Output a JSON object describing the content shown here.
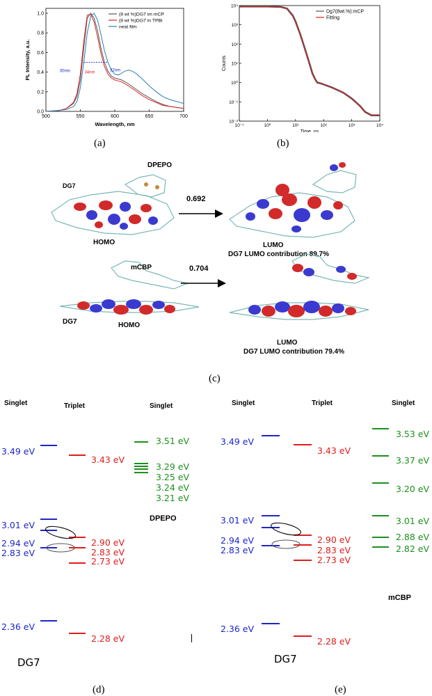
{
  "panel_a": {
    "caption": "(a)",
    "chart_data": {
      "type": "line",
      "xlabel": "Wavelength, nm",
      "ylabel": "PL Intensity, a.u.",
      "xlim": [
        500,
        700
      ],
      "ylim": [
        0,
        1.05
      ],
      "xticks": [
        "500",
        "550",
        "600",
        "650",
        "700"
      ],
      "yticks": [
        "0.0",
        "0.2",
        "0.4",
        "0.6",
        "0.8",
        "1.0"
      ],
      "legend_position": "top-right",
      "series": [
        {
          "name": "(8 wt %)DG7 im mCP",
          "color": "#555555",
          "x": [
            500,
            520,
            530,
            540,
            545,
            550,
            555,
            560,
            565,
            570,
            575,
            580,
            585,
            590,
            595,
            600,
            605,
            610,
            620,
            630,
            640,
            650,
            660,
            670,
            680,
            690,
            700
          ],
          "y": [
            0.0,
            0.01,
            0.03,
            0.08,
            0.15,
            0.32,
            0.65,
            0.95,
            1.0,
            0.95,
            0.82,
            0.64,
            0.5,
            0.41,
            0.36,
            0.34,
            0.33,
            0.32,
            0.28,
            0.23,
            0.18,
            0.14,
            0.1,
            0.07,
            0.05,
            0.04,
            0.03
          ]
        },
        {
          "name": "(8 wt %)DG7 in TPBi",
          "color": "#e02020",
          "x": [
            500,
            520,
            530,
            540,
            545,
            550,
            555,
            560,
            565,
            570,
            575,
            580,
            585,
            590,
            595,
            600,
            605,
            610,
            620,
            630,
            640,
            650,
            660,
            670,
            680,
            690,
            700
          ],
          "y": [
            0.0,
            0.01,
            0.03,
            0.09,
            0.18,
            0.38,
            0.72,
            0.98,
            0.99,
            0.91,
            0.76,
            0.59,
            0.46,
            0.38,
            0.34,
            0.32,
            0.31,
            0.3,
            0.26,
            0.21,
            0.16,
            0.12,
            0.09,
            0.06,
            0.05,
            0.04,
            0.03
          ]
        },
        {
          "name": "neat film",
          "color": "#2a7db0",
          "x": [
            500,
            520,
            530,
            540,
            545,
            550,
            555,
            560,
            565,
            570,
            575,
            580,
            585,
            590,
            595,
            600,
            605,
            610,
            615,
            620,
            625,
            630,
            640,
            650,
            660,
            670,
            680,
            690,
            700
          ],
          "y": [
            0.0,
            0.01,
            0.02,
            0.05,
            0.1,
            0.24,
            0.5,
            0.8,
            0.97,
            1.0,
            0.93,
            0.78,
            0.62,
            0.5,
            0.42,
            0.38,
            0.37,
            0.39,
            0.41,
            0.42,
            0.41,
            0.39,
            0.33,
            0.26,
            0.2,
            0.15,
            0.12,
            0.1,
            0.08
          ]
        }
      ],
      "annotations": [
        "30nm",
        "34nm",
        "32nm"
      ]
    }
  },
  "panel_b": {
    "caption": "(b)",
    "chart_data": {
      "type": "line",
      "xlabel": "Time, ns",
      "ylabel": "Counts",
      "xscale": "log",
      "yscale": "log",
      "xlim": [
        0.1,
        10000
      ],
      "ylim": [
        0.01,
        10000
      ],
      "xticks": [
        "10⁻¹",
        "10⁰",
        "10¹",
        "10²",
        "10³",
        "10⁴"
      ],
      "yticks": [
        "10⁻²",
        "10⁻¹",
        "10⁰",
        "10¹",
        "10²",
        "10³",
        "10⁴"
      ],
      "legend_position": "top-right",
      "series": [
        {
          "name": "Dg7(8wt.%):mCP",
          "color": "#555555",
          "x": [
            0.1,
            1,
            3,
            5,
            8,
            10,
            15,
            20,
            30,
            40,
            50,
            60,
            80,
            100,
            200,
            500,
            1000,
            2000,
            3000,
            5000,
            10000
          ],
          "y": [
            9000,
            9000,
            8500,
            7000,
            3000,
            1500,
            300,
            80,
            12,
            3,
            1.5,
            1.0,
            0.9,
            0.8,
            0.55,
            0.3,
            0.15,
            0.06,
            0.03,
            0.02,
            0.02
          ]
        },
        {
          "name": "Fitting",
          "color": "#e02020",
          "x": [
            0.1,
            1,
            3,
            5,
            8,
            10,
            15,
            20,
            30,
            40,
            50,
            60,
            80,
            100,
            200,
            500,
            1000,
            2000,
            3000,
            5000,
            10000
          ],
          "y": [
            9000,
            9000,
            8500,
            7000,
            3000,
            1500,
            300,
            80,
            12,
            3,
            1.5,
            1.0,
            0.9,
            0.8,
            0.55,
            0.3,
            0.15,
            0.06,
            0.03,
            0.02,
            0.02
          ]
        }
      ]
    }
  },
  "panel_c": {
    "caption": "(c)",
    "top": {
      "host": "DPEPO",
      "dopant": "DG7",
      "homo": "HOMO",
      "lumo": "LUMO",
      "value": "0.692",
      "contribution": "DG7 LUMO contribution 89.7%"
    },
    "bottom": {
      "host": "mCBP",
      "dopant": "DG7",
      "homo": "HOMO",
      "lumo": "LUMO",
      "value": "0.704",
      "contribution": "DG7 LUMO contribution 79.4%"
    }
  },
  "panel_d": {
    "caption": "(d)",
    "header_singlet_left": "Singlet",
    "header_triplet": "Triplet",
    "header_singlet_right": "Singlet",
    "molecule": "DG7",
    "host": "DPEPO",
    "dg7_singlets": [
      "3.49 eV",
      "3.01 eV",
      "2.94 eV",
      "2.83 eV",
      "2.36 eV"
    ],
    "dg7_triplets": [
      "3.43 eV",
      "2.90 eV",
      "2.83 eV",
      "2.73 eV",
      "2.28 eV"
    ],
    "host_singlets": [
      "3.51 eV",
      "3.29 eV",
      "3.25 eV",
      "3.24 eV",
      "3.21 eV"
    ]
  },
  "panel_e": {
    "caption": "(e)",
    "header_singlet_left": "Singlet",
    "header_triplet": "Triplet",
    "header_singlet_right": "Singlet",
    "molecule": "DG7",
    "host": "mCBP",
    "dg7_singlets": [
      "3.49 eV",
      "3.01 eV",
      "2.94 eV",
      "2.83 eV",
      "2.36 eV"
    ],
    "dg7_triplets": [
      "3.43 eV",
      "2.90 eV",
      "2.83 eV",
      "2.73 eV",
      "2.28 eV"
    ],
    "host_singlets": [
      "3.53 eV",
      "3.37 eV",
      "3.20 eV",
      "3.01 eV",
      "2.88 eV",
      "2.82 eV"
    ]
  }
}
